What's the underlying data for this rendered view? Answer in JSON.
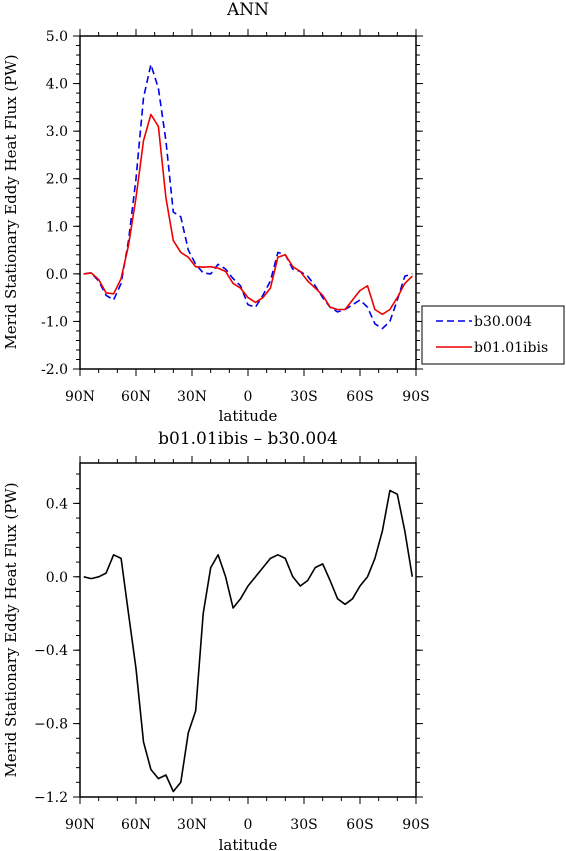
{
  "chart_data": [
    {
      "type": "line",
      "title": "ANN",
      "xlabel": "latitude",
      "ylabel": "Merid Stationary Eddy Heat Flux (PW)",
      "xlim": [
        90,
        -90
      ],
      "ylim": [
        -2.0,
        5.0
      ],
      "x_tick_values": [
        90,
        60,
        30,
        0,
        -30,
        -60,
        -90
      ],
      "x_tick_labels": [
        "90N",
        "60N",
        "30N",
        "0",
        "30S",
        "60S",
        "90S"
      ],
      "y_tick_values": [
        -2.0,
        -1.0,
        0.0,
        1.0,
        2.0,
        3.0,
        4.0,
        5.0
      ],
      "y_tick_labels": [
        "-2.0",
        "-1.0",
        "0.0",
        "1.0",
        "2.0",
        "3.0",
        "4.0",
        "5.0"
      ],
      "legend_position": "right",
      "series": [
        {
          "name": "b30.004",
          "color": "#0000ee",
          "dash": "dashed",
          "x": [
            88,
            84,
            80,
            76,
            72,
            68,
            64,
            60,
            56,
            52,
            48,
            44,
            40,
            36,
            32,
            28,
            24,
            20,
            16,
            12,
            8,
            4,
            0,
            -4,
            -8,
            -12,
            -16,
            -20,
            -24,
            -28,
            -32,
            -36,
            -40,
            -44,
            -48,
            -52,
            -56,
            -60,
            -64,
            -68,
            -72,
            -76,
            -80,
            -84,
            -88
          ],
          "y": [
            0.0,
            0.02,
            -0.15,
            -0.45,
            -0.55,
            -0.2,
            0.7,
            2.0,
            3.7,
            4.4,
            3.9,
            2.8,
            1.3,
            1.2,
            0.5,
            0.2,
            0.02,
            0.0,
            0.2,
            0.1,
            -0.1,
            -0.25,
            -0.65,
            -0.7,
            -0.45,
            -0.15,
            0.45,
            0.4,
            0.1,
            0.05,
            -0.05,
            -0.25,
            -0.5,
            -0.7,
            -0.8,
            -0.75,
            -0.65,
            -0.55,
            -0.7,
            -1.05,
            -1.15,
            -1.0,
            -0.55,
            -0.05,
            0.0
          ]
        },
        {
          "name": "b01.01ibis",
          "color": "#ee0000",
          "dash": "solid",
          "x": [
            88,
            84,
            80,
            76,
            72,
            68,
            64,
            60,
            56,
            52,
            48,
            44,
            40,
            36,
            32,
            28,
            24,
            20,
            16,
            12,
            8,
            4,
            0,
            -4,
            -8,
            -12,
            -16,
            -20,
            -24,
            -28,
            -32,
            -36,
            -40,
            -44,
            -48,
            -52,
            -56,
            -60,
            -64,
            -68,
            -72,
            -76,
            -80,
            -84,
            -88
          ],
          "y": [
            0.0,
            0.02,
            -0.12,
            -0.4,
            -0.42,
            -0.1,
            0.6,
            1.6,
            2.8,
            3.35,
            3.1,
            1.6,
            0.7,
            0.45,
            0.35,
            0.15,
            0.14,
            0.15,
            0.12,
            0.05,
            -0.2,
            -0.3,
            -0.5,
            -0.6,
            -0.5,
            -0.3,
            0.35,
            0.4,
            0.15,
            0.05,
            -0.15,
            -0.3,
            -0.45,
            -0.7,
            -0.75,
            -0.75,
            -0.55,
            -0.35,
            -0.25,
            -0.75,
            -0.85,
            -0.75,
            -0.5,
            -0.2,
            -0.05
          ]
        }
      ]
    },
    {
      "type": "line",
      "title": "b01.01ibis – b30.004",
      "xlabel": "latitude",
      "ylabel": "Merid Stationary Eddy Heat Flux (PW)",
      "xlim": [
        90,
        -90
      ],
      "ylim": [
        -1.2,
        0.62
      ],
      "x_tick_values": [
        90,
        60,
        30,
        0,
        -30,
        -60,
        -90
      ],
      "x_tick_labels": [
        "90N",
        "60N",
        "30N",
        "0",
        "30S",
        "60S",
        "90S"
      ],
      "y_tick_values": [
        -1.2,
        -0.8,
        -0.4,
        0.0,
        0.4
      ],
      "y_tick_labels": [
        "−1.2",
        "−0.8",
        "−0.4",
        "0.0",
        "0.4"
      ],
      "series": [
        {
          "color": "#000000",
          "dash": "solid",
          "x": [
            88,
            84,
            80,
            76,
            72,
            68,
            64,
            60,
            56,
            52,
            48,
            44,
            40,
            36,
            32,
            28,
            24,
            20,
            16,
            12,
            8,
            4,
            0,
            -4,
            -8,
            -12,
            -16,
            -20,
            -24,
            -28,
            -32,
            -36,
            -40,
            -44,
            -48,
            -52,
            -56,
            -60,
            -64,
            -68,
            -72,
            -76,
            -80,
            -84,
            -88
          ],
          "y": [
            0.0,
            -0.01,
            0.0,
            0.02,
            0.12,
            0.1,
            -0.2,
            -0.5,
            -0.9,
            -1.05,
            -1.1,
            -1.08,
            -1.17,
            -1.12,
            -0.85,
            -0.73,
            -0.2,
            0.05,
            0.12,
            0.0,
            -0.17,
            -0.12,
            -0.05,
            0.0,
            0.05,
            0.1,
            0.12,
            0.1,
            0.0,
            -0.05,
            -0.02,
            0.05,
            0.07,
            -0.02,
            -0.12,
            -0.15,
            -0.12,
            -0.05,
            0.0,
            0.1,
            0.25,
            0.47,
            0.45,
            0.25,
            0.0
          ]
        }
      ]
    }
  ]
}
